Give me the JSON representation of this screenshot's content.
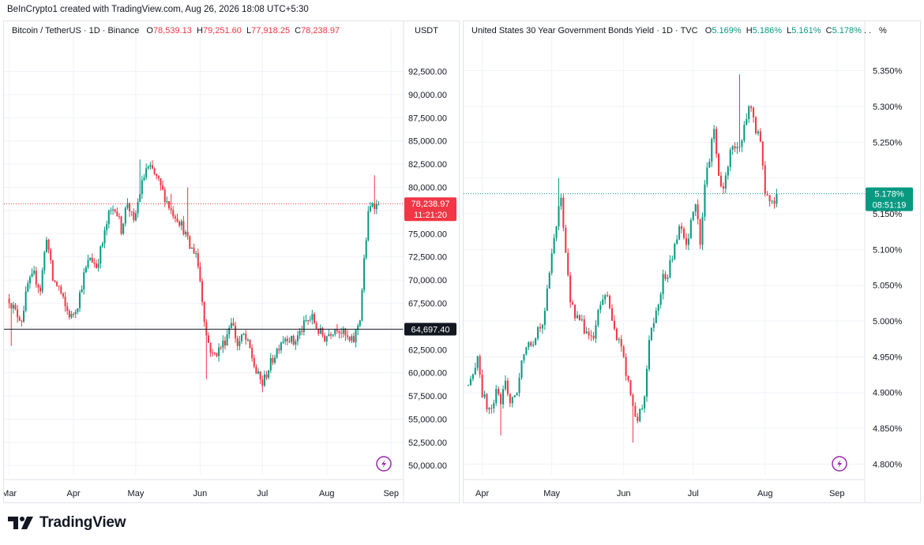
{
  "credit": "BeInCrypto1 created with TradingView.com, Aug 26, 2026 18:08 UTC+5:30",
  "brand": "TradingView",
  "colors": {
    "up": "#089981",
    "down": "#f23645",
    "text": "#131722",
    "grid": "#f0f3fa"
  },
  "icons": {
    "alert": "lightning-icon",
    "logo": "tradingview-logo-icon"
  },
  "chart_data": [
    {
      "type": "candlestick",
      "legend": {
        "symbol": "Bitcoin / TetherUS · 1D · Binance",
        "O": "78,539.13",
        "H": "79,251.60",
        "L": "77,918.25",
        "C": "78,238.97"
      },
      "unit": "USDT",
      "ylim": [
        49000,
        94500
      ],
      "y_ticks": [
        50000,
        52500,
        55000,
        57500,
        60000,
        62500,
        65000,
        67500,
        70000,
        72500,
        75000,
        77500,
        80000,
        82500,
        85000,
        87500,
        90000,
        92500
      ],
      "y_tick_labels": [
        "50,000.00",
        "52,500.00",
        "55,000.00",
        "57,500.00",
        "60,000.00",
        "62,500.00",
        "",
        "67,500.00",
        "70,000.00",
        "72,500.00",
        "75,000.00",
        "",
        "80,000.00",
        "82,500.00",
        "85,000.00",
        "87,500.00",
        "90,000.00",
        "92,500.00"
      ],
      "x_labels": [
        "Mar",
        "Apr",
        "May",
        "Jun",
        "Jul",
        "Aug",
        "Sep"
      ],
      "x_label_days": [
        0,
        31,
        61,
        92,
        122,
        153,
        184
      ],
      "horizontal_line": {
        "value": 64697.4,
        "label": "64,697.40"
      },
      "last_price": {
        "value": 78238.97,
        "label": "78,238.97",
        "countdown": "11:21:20"
      },
      "x_span": [
        -1,
        190
      ],
      "anchors": [
        [
          0,
          68000
        ],
        [
          3,
          66500
        ],
        [
          6,
          65800
        ],
        [
          9,
          69500
        ],
        [
          12,
          70500
        ],
        [
          15,
          69000
        ],
        [
          18,
          74800
        ],
        [
          21,
          70000
        ],
        [
          24,
          69200
        ],
        [
          27,
          67000
        ],
        [
          30,
          66000
        ],
        [
          33,
          67500
        ],
        [
          36,
          70500
        ],
        [
          39,
          72500
        ],
        [
          42,
          71500
        ],
        [
          45,
          74000
        ],
        [
          48,
          77000
        ],
        [
          51,
          78000
        ],
        [
          54,
          75500
        ],
        [
          57,
          78500
        ],
        [
          60,
          76000
        ],
        [
          63,
          79500
        ],
        [
          66,
          82000
        ],
        [
          69,
          81800
        ],
        [
          72,
          80500
        ],
        [
          75,
          79000
        ],
        [
          78,
          77500
        ],
        [
          81,
          76800
        ],
        [
          84,
          75500
        ],
        [
          87,
          73500
        ],
        [
          90,
          73000
        ],
        [
          92,
          70000
        ],
        [
          95,
          64000
        ],
        [
          98,
          61800
        ],
        [
          101,
          62500
        ],
        [
          104,
          63500
        ],
        [
          107,
          65800
        ],
        [
          110,
          63000
        ],
        [
          113,
          64000
        ],
        [
          116,
          62500
        ],
        [
          119,
          60000
        ],
        [
          122,
          58800
        ],
        [
          125,
          60500
        ],
        [
          128,
          62000
        ],
        [
          131,
          63500
        ],
        [
          134,
          64000
        ],
        [
          137,
          63200
        ],
        [
          140,
          64300
        ],
        [
          143,
          65500
        ],
        [
          146,
          65900
        ],
        [
          149,
          64500
        ],
        [
          152,
          63800
        ],
        [
          155,
          64500
        ],
        [
          158,
          65000
        ],
        [
          161,
          64200
        ],
        [
          164,
          63300
        ],
        [
          166,
          63500
        ],
        [
          169,
          66000
        ],
        [
          171,
          72000
        ],
        [
          173,
          77000
        ],
        [
          175,
          78500
        ],
        [
          177,
          78000
        ],
        [
          178,
          78239
        ]
      ],
      "spikes": [
        [
          1,
          62900
        ],
        [
          86,
          80000
        ],
        [
          95,
          59300
        ],
        [
          122,
          57900
        ],
        [
          176,
          81300
        ],
        [
          78,
          79300
        ],
        [
          63,
          83000
        ]
      ]
    },
    {
      "type": "candlestick",
      "legend": {
        "symbol": "United States 30 Year Government Bonds Yield · 1D · TVC",
        "O": "5.169%",
        "H": "5.186%",
        "L": "5.161%",
        "C": "5.178%"
      },
      "unit": "%",
      "ylim": [
        4.785,
        5.375
      ],
      "y_ticks": [
        4.8,
        4.85,
        4.9,
        4.95,
        5.0,
        5.05,
        5.1,
        5.15,
        5.2,
        5.25,
        5.3,
        5.35
      ],
      "y_tick_labels": [
        "4.800%",
        "4.850%",
        "4.900%",
        "4.950%",
        "5.000%",
        "5.050%",
        "5.100%",
        "5.150%",
        "",
        "5.250%",
        "5.300%",
        "5.350%"
      ],
      "x_labels": [
        "Apr",
        "May",
        "Jun",
        "Jul",
        "Aug",
        "Sep"
      ],
      "x_label_days": [
        0,
        30,
        61,
        91,
        122,
        153
      ],
      "last_price": {
        "value": 5.178,
        "label": "5.178%",
        "countdown": "08:51:19"
      },
      "x_span": [
        -6,
        165
      ],
      "anchors": [
        [
          -6,
          4.91
        ],
        [
          -4,
          4.92
        ],
        [
          -2,
          4.955
        ],
        [
          0,
          4.9
        ],
        [
          2,
          4.88
        ],
        [
          4,
          4.875
        ],
        [
          6,
          4.9
        ],
        [
          8,
          4.885
        ],
        [
          10,
          4.92
        ],
        [
          12,
          4.885
        ],
        [
          14,
          4.89
        ],
        [
          16,
          4.92
        ],
        [
          18,
          4.96
        ],
        [
          20,
          4.975
        ],
        [
          22,
          4.97
        ],
        [
          24,
          4.99
        ],
        [
          26,
          5.0
        ],
        [
          28,
          5.04
        ],
        [
          30,
          5.09
        ],
        [
          32,
          5.14
        ],
        [
          34,
          5.175
        ],
        [
          36,
          5.09
        ],
        [
          38,
          5.03
        ],
        [
          40,
          5.01
        ],
        [
          42,
          5.0
        ],
        [
          44,
          4.99
        ],
        [
          46,
          4.98
        ],
        [
          48,
          4.975
        ],
        [
          50,
          5.01
        ],
        [
          52,
          5.03
        ],
        [
          54,
          5.04
        ],
        [
          56,
          5.0
        ],
        [
          58,
          4.97
        ],
        [
          60,
          4.97
        ],
        [
          62,
          4.92
        ],
        [
          64,
          4.9
        ],
        [
          66,
          4.86
        ],
        [
          68,
          4.87
        ],
        [
          70,
          4.89
        ],
        [
          72,
          4.98
        ],
        [
          74,
          5.0
        ],
        [
          76,
          5.03
        ],
        [
          78,
          5.06
        ],
        [
          80,
          5.065
        ],
        [
          82,
          5.09
        ],
        [
          84,
          5.12
        ],
        [
          86,
          5.13
        ],
        [
          88,
          5.1
        ],
        [
          90,
          5.14
        ],
        [
          92,
          5.17
        ],
        [
          94,
          5.1
        ],
        [
          96,
          5.19
        ],
        [
          98,
          5.23
        ],
        [
          100,
          5.265
        ],
        [
          102,
          5.2
        ],
        [
          104,
          5.18
        ],
        [
          106,
          5.22
        ],
        [
          108,
          5.25
        ],
        [
          110,
          5.24
        ],
        [
          112,
          5.25
        ],
        [
          114,
          5.29
        ],
        [
          116,
          5.3
        ],
        [
          118,
          5.27
        ],
        [
          120,
          5.25
        ],
        [
          122,
          5.18
        ],
        [
          124,
          5.17
        ],
        [
          126,
          5.165
        ],
        [
          127,
          5.178
        ]
      ],
      "spikes": [
        [
          8,
          4.84
        ],
        [
          65,
          4.83
        ],
        [
          111,
          5.345
        ],
        [
          33,
          5.2
        ]
      ]
    }
  ]
}
